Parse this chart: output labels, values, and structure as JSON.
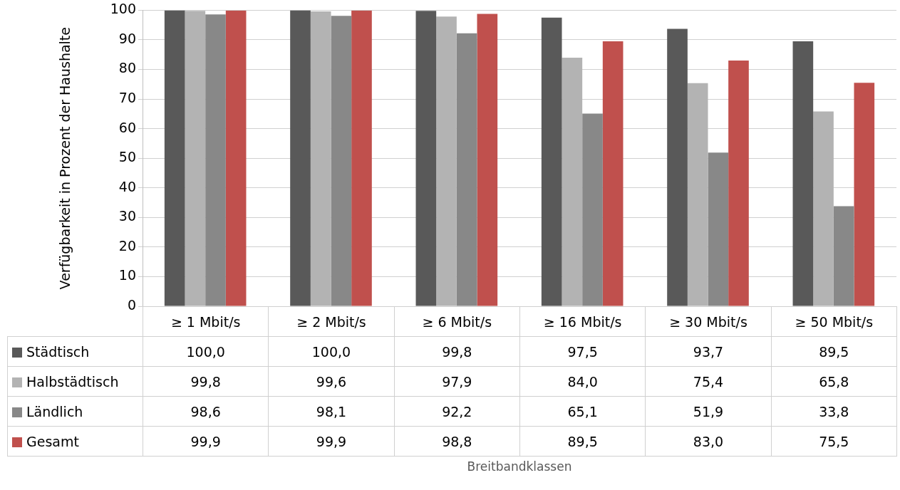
{
  "chart_data": {
    "type": "bar",
    "annotations": [
      "Breitbandklassen"
    ],
    "ylabel": "Verfügbarkeit in Prozent der Haushalte",
    "categories": [
      "≥ 1 Mbit/s",
      "≥ 2 Mbit/s",
      "≥ 6 Mbit/s",
      "≥ 16 Mbit/s",
      "≥ 30 Mbit/s",
      "≥ 50 Mbit/s"
    ],
    "series": [
      {
        "name": "Städtisch",
        "color": "#595959",
        "values": [
          100.0,
          100.0,
          99.8,
          97.5,
          93.7,
          89.5
        ],
        "value_labels": [
          "100,0",
          "100,0",
          "99,8",
          "97,5",
          "93,7",
          "89,5"
        ]
      },
      {
        "name": "Halbstädtisch",
        "color": "#b3b3b3",
        "values": [
          99.8,
          99.6,
          97.9,
          84.0,
          75.4,
          65.8
        ],
        "value_labels": [
          "99,8",
          "99,6",
          "97,9",
          "84,0",
          "75,4",
          "65,8"
        ]
      },
      {
        "name": "Ländlich",
        "color": "#888888",
        "values": [
          98.6,
          98.1,
          92.2,
          65.1,
          51.9,
          33.8
        ],
        "value_labels": [
          "98,6",
          "98,1",
          "92,2",
          "65,1",
          "51,9",
          "33,8"
        ]
      },
      {
        "name": "Gesamt",
        "color": "#c0504d",
        "values": [
          99.9,
          99.9,
          98.8,
          89.5,
          83.0,
          75.5
        ],
        "value_labels": [
          "99,9",
          "99,9",
          "98,8",
          "89,5",
          "83,0",
          "75,5"
        ]
      }
    ],
    "ylim": [
      0,
      100
    ],
    "yticks": [
      0,
      10,
      20,
      30,
      40,
      50,
      60,
      70,
      80,
      90,
      100
    ],
    "grid": "y",
    "legend": "bottom"
  }
}
